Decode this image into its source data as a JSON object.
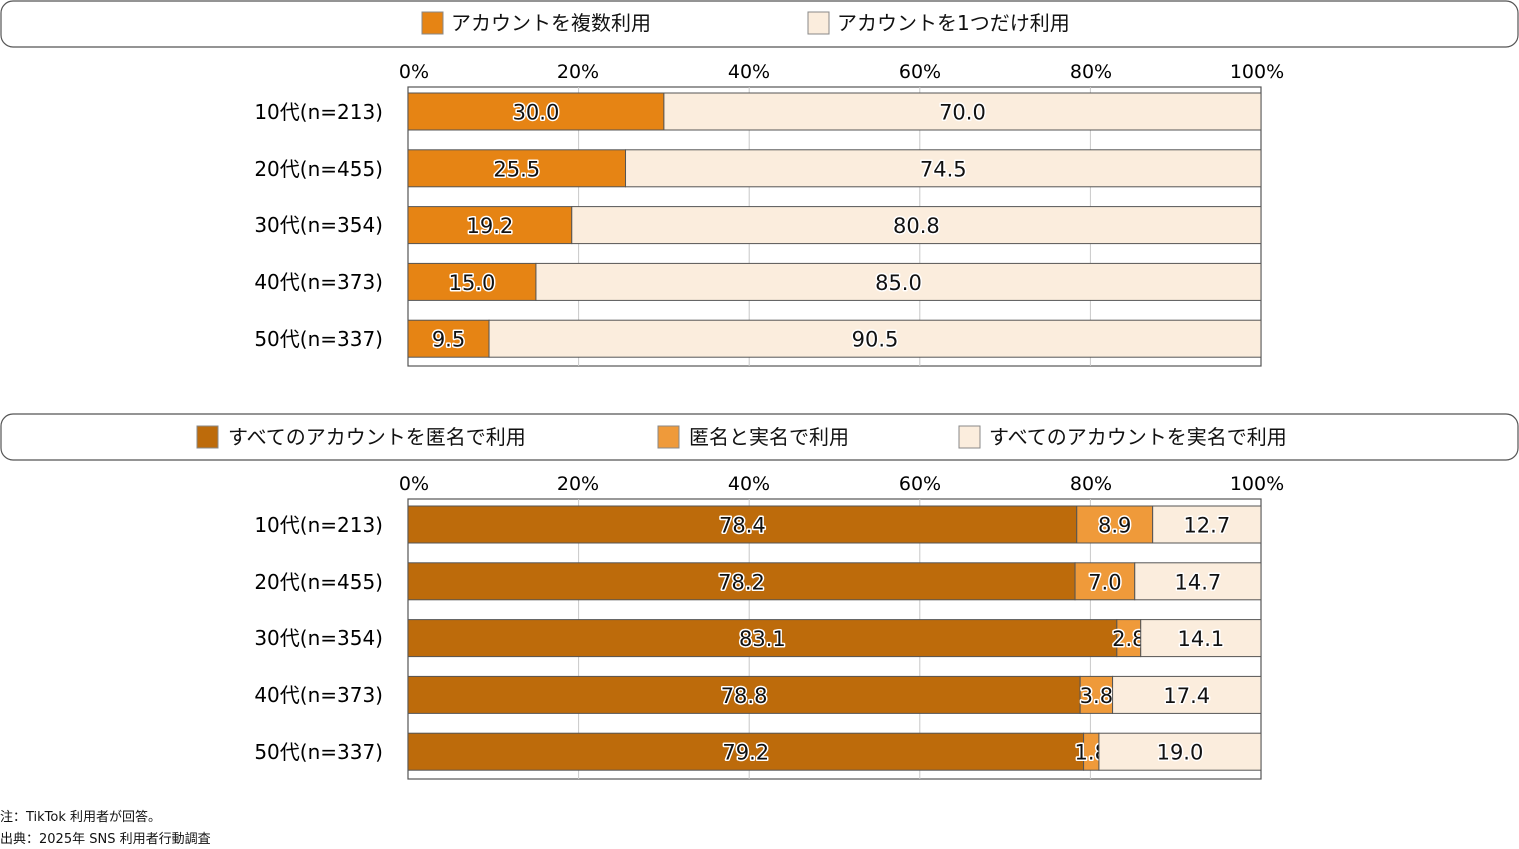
{
  "colors": {
    "multi": "#e68414",
    "single": "#fbeddd",
    "anon_all": "#bd6b0b",
    "mixed": "#ef9a3a",
    "real_all": "#fbeddd",
    "frame": "#555555",
    "grid": "#c8c8c8"
  },
  "chart_data": [
    {
      "type": "bar",
      "orientation": "horizontal",
      "stacked": true,
      "title": "",
      "xlabel": "",
      "ylabel": "",
      "xlim": [
        0,
        100
      ],
      "x_ticks": [
        "0%",
        "20%",
        "40%",
        "60%",
        "80%",
        "100%"
      ],
      "grid": true,
      "legend_position": "top",
      "categories": [
        "10代(n=213)",
        "20代(n=455)",
        "30代(n=354)",
        "40代(n=373)",
        "50代(n=337)"
      ],
      "series": [
        {
          "name": "アカウントを複数利用",
          "color_key": "multi",
          "values": [
            30.0,
            25.5,
            19.2,
            15.0,
            9.5
          ],
          "labels": [
            "30.0",
            "25.5",
            "19.2",
            "15.0",
            "9.5"
          ]
        },
        {
          "name": "アカウントを1つだけ利用",
          "color_key": "single",
          "values": [
            70.0,
            74.5,
            80.8,
            85.0,
            90.5
          ],
          "labels": [
            "70.0",
            "74.5",
            "80.8",
            "85.0",
            "90.5"
          ]
        }
      ]
    },
    {
      "type": "bar",
      "orientation": "horizontal",
      "stacked": true,
      "title": "",
      "xlabel": "",
      "ylabel": "",
      "xlim": [
        0,
        100
      ],
      "x_ticks": [
        "0%",
        "20%",
        "40%",
        "60%",
        "80%",
        "100%"
      ],
      "grid": true,
      "legend_position": "top",
      "categories": [
        "10代(n=213)",
        "20代(n=455)",
        "30代(n=354)",
        "40代(n=373)",
        "50代(n=337)"
      ],
      "series": [
        {
          "name": "すべてのアカウントを匿名で利用",
          "color_key": "anon_all",
          "values": [
            78.4,
            78.2,
            83.1,
            78.8,
            79.2
          ],
          "labels": [
            "78.4",
            "78.2",
            "83.1",
            "78.8",
            "79.2"
          ]
        },
        {
          "name": "匿名と実名で利用",
          "color_key": "mixed",
          "values": [
            8.9,
            7.0,
            2.8,
            3.8,
            1.8
          ],
          "labels": [
            "8.9",
            "7.0",
            "2.8",
            "3.8",
            "1.8"
          ]
        },
        {
          "name": "すべてのアカウントを実名で利用",
          "color_key": "real_all",
          "values": [
            12.7,
            14.7,
            14.1,
            17.4,
            19.0
          ],
          "labels": [
            "12.7",
            "14.7",
            "14.1",
            "17.4",
            "19.0"
          ]
        }
      ]
    }
  ],
  "notes": {
    "note": "注：TikTok 利用者が回答。",
    "source": "出典：2025年 SNS 利用者行動調査"
  }
}
